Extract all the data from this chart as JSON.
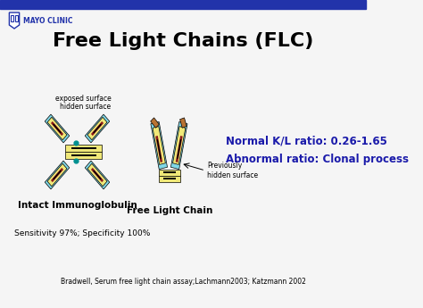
{
  "title": "Free Light Chains (FLC)",
  "title_fontsize": 16,
  "title_color": "#000000",
  "bg_color": "#f5f5f5",
  "header_color": "#2233aa",
  "mayo_text": "MAYO CLINIC",
  "normal_ratio_text": "Normal K/L ratio: 0.26-1.65",
  "abnormal_ratio_text": "Abnormal ratio: Clonal process",
  "ratio_color": "#1a1aaa",
  "label_intact": "Intact Immunoglobulin",
  "label_flc": "Free Light Chain",
  "label_color": "#000000",
  "sensitivity_text": "Sensitivity 97%; Specificity 100%",
  "citation_text": "Bradwell, Serum free light chain assay;Lachmann2003; Katzmann 2002",
  "exposed_surface": "exposed surface",
  "hidden_surface": "hidden surface",
  "previously_hidden": "Previously\nhidden surface",
  "light_blue": "#80d8e8",
  "yellow": "#f0e878",
  "dark_red": "#8b1a1a",
  "tan": "#c8a060",
  "black": "#000000",
  "teal": "#009090"
}
